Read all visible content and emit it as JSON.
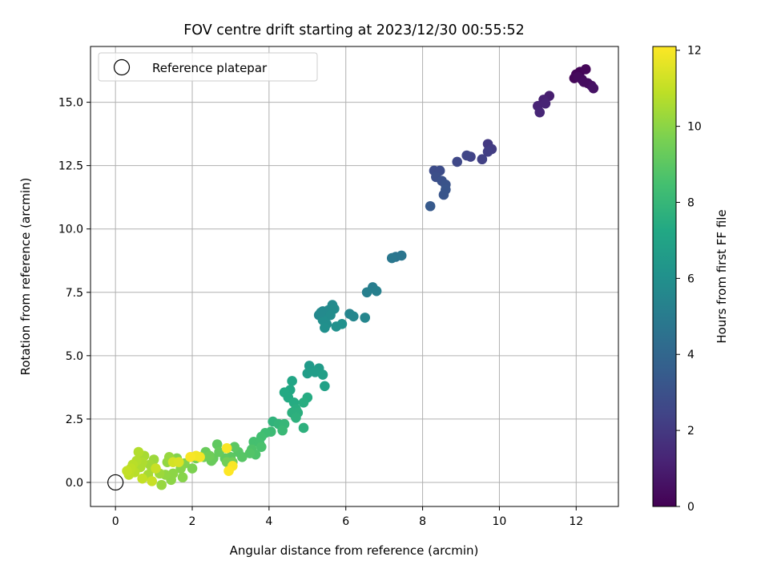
{
  "chart_data": {
    "type": "scatter",
    "title": "FOV centre drift starting at 2023/12/30 00:55:52",
    "xlabel": "Angular distance from reference (arcmin)",
    "ylabel": "Rotation from reference (arcmin)",
    "xlim": [
      -0.65,
      13.1
    ],
    "ylim": [
      -0.95,
      17.2
    ],
    "xticks": [
      0,
      2,
      4,
      6,
      8,
      10,
      12
    ],
    "yticks": [
      0.0,
      2.5,
      5.0,
      7.5,
      10.0,
      12.5,
      15.0
    ],
    "xtick_labels": [
      "0",
      "2",
      "4",
      "6",
      "8",
      "10",
      "12"
    ],
    "ytick_labels": [
      "0.0",
      "2.5",
      "5.0",
      "7.5",
      "10.0",
      "12.5",
      "15.0"
    ],
    "grid": true,
    "colormap": "viridis",
    "colorbar": {
      "label": "Hours from first FF file",
      "range": [
        0,
        12.1
      ],
      "ticks": [
        0,
        2,
        4,
        6,
        8,
        10,
        12
      ],
      "tick_labels": [
        "0",
        "2",
        "4",
        "6",
        "8",
        "10",
        "12"
      ]
    },
    "legend": {
      "position": "top-left",
      "entries": [
        {
          "label": "Reference platepar",
          "marker": "open-circle"
        }
      ]
    },
    "reference_point": {
      "x": 0,
      "y": 0
    },
    "series": [
      {
        "points": [
          [
            12.0,
            16.1,
            0.1
          ],
          [
            12.1,
            16.2,
            0.1
          ],
          [
            12.25,
            16.3,
            0.2
          ],
          [
            11.95,
            15.95,
            0.2
          ],
          [
            12.15,
            15.9,
            0.3
          ],
          [
            12.3,
            15.75,
            0.4
          ],
          [
            12.4,
            15.65,
            0.5
          ],
          [
            12.45,
            15.55,
            0.6
          ],
          [
            12.05,
            16.0,
            0.3
          ],
          [
            12.2,
            15.8,
            0.4
          ],
          [
            11.3,
            15.25,
            1.0
          ],
          [
            11.15,
            15.1,
            1.1
          ],
          [
            11.0,
            14.85,
            1.2
          ],
          [
            11.05,
            14.6,
            1.3
          ],
          [
            11.2,
            14.95,
            1.2
          ],
          [
            9.7,
            13.35,
            2.0
          ],
          [
            9.8,
            13.15,
            2.1
          ],
          [
            9.7,
            13.05,
            2.2
          ],
          [
            9.55,
            12.75,
            2.3
          ],
          [
            9.25,
            12.85,
            2.4
          ],
          [
            9.15,
            12.9,
            2.5
          ],
          [
            8.9,
            12.65,
            2.6
          ],
          [
            8.3,
            12.3,
            2.8
          ],
          [
            8.45,
            12.3,
            2.8
          ],
          [
            8.35,
            12.05,
            2.9
          ],
          [
            8.5,
            11.9,
            3.0
          ],
          [
            8.6,
            11.75,
            3.1
          ],
          [
            8.6,
            11.55,
            3.2
          ],
          [
            8.55,
            11.35,
            3.2
          ],
          [
            8.2,
            10.9,
            3.4
          ],
          [
            7.3,
            8.9,
            4.6
          ],
          [
            7.45,
            8.95,
            4.7
          ],
          [
            7.2,
            8.85,
            4.8
          ],
          [
            6.7,
            7.7,
            5.1
          ],
          [
            6.8,
            7.55,
            5.2
          ],
          [
            6.55,
            7.5,
            5.2
          ],
          [
            6.1,
            6.65,
            5.4
          ],
          [
            6.2,
            6.55,
            5.5
          ],
          [
            6.5,
            6.5,
            5.5
          ],
          [
            5.3,
            6.6,
            5.6
          ],
          [
            5.4,
            6.75,
            5.6
          ],
          [
            5.55,
            6.8,
            5.7
          ],
          [
            5.65,
            7.0,
            5.7
          ],
          [
            5.7,
            6.85,
            5.8
          ],
          [
            5.45,
            6.5,
            5.8
          ],
          [
            5.6,
            6.6,
            5.8
          ],
          [
            5.4,
            6.4,
            5.9
          ],
          [
            5.5,
            6.25,
            5.9
          ],
          [
            5.75,
            6.15,
            6.0
          ],
          [
            5.9,
            6.25,
            6.0
          ],
          [
            5.45,
            6.1,
            6.0
          ],
          [
            5.35,
            6.7,
            5.7
          ],
          [
            5.05,
            4.6,
            6.5
          ],
          [
            5.3,
            4.5,
            6.6
          ],
          [
            5.2,
            4.35,
            6.7
          ],
          [
            5.0,
            4.3,
            6.7
          ],
          [
            5.4,
            4.25,
            6.8
          ],
          [
            5.45,
            3.8,
            6.9
          ],
          [
            4.6,
            4.0,
            7.1
          ],
          [
            4.55,
            3.65,
            7.2
          ],
          [
            4.4,
            3.55,
            7.3
          ],
          [
            4.5,
            3.35,
            7.3
          ],
          [
            4.65,
            3.15,
            7.4
          ],
          [
            5.0,
            3.35,
            7.4
          ],
          [
            4.9,
            3.15,
            7.5
          ],
          [
            4.7,
            2.9,
            7.5
          ],
          [
            4.6,
            2.75,
            7.6
          ],
          [
            4.75,
            2.75,
            7.6
          ],
          [
            4.7,
            2.55,
            7.7
          ],
          [
            4.9,
            2.15,
            7.7
          ],
          [
            4.1,
            2.4,
            7.8
          ],
          [
            4.25,
            2.3,
            7.9
          ],
          [
            4.4,
            2.3,
            8.0
          ],
          [
            4.35,
            2.05,
            8.1
          ],
          [
            4.05,
            2.0,
            8.2
          ],
          [
            3.9,
            1.95,
            8.3
          ],
          [
            3.8,
            1.8,
            8.4
          ],
          [
            3.6,
            1.6,
            8.5
          ],
          [
            3.75,
            1.55,
            8.5
          ],
          [
            3.8,
            1.4,
            8.6
          ],
          [
            3.55,
            1.3,
            8.7
          ],
          [
            3.65,
            1.1,
            8.7
          ],
          [
            3.5,
            1.15,
            8.8
          ],
          [
            3.2,
            1.2,
            8.9
          ],
          [
            3.3,
            1.0,
            8.9
          ],
          [
            3.1,
            1.4,
            9.0
          ],
          [
            3.0,
            1.0,
            9.0
          ],
          [
            2.85,
            0.95,
            9.1
          ],
          [
            2.65,
            1.5,
            9.1
          ],
          [
            2.7,
            1.2,
            9.2
          ],
          [
            2.55,
            0.95,
            9.2
          ],
          [
            2.35,
            1.2,
            9.3
          ],
          [
            2.5,
            0.85,
            9.3
          ],
          [
            2.3,
            1.0,
            9.4
          ],
          [
            2.45,
            1.05,
            9.4
          ],
          [
            3.05,
            0.8,
            9.5
          ],
          [
            2.9,
            0.8,
            9.5
          ],
          [
            2.1,
            0.95,
            9.6
          ],
          [
            2.0,
            0.55,
            9.7
          ],
          [
            1.8,
            0.75,
            9.8
          ],
          [
            1.6,
            0.95,
            9.8
          ],
          [
            1.7,
            0.55,
            9.9
          ],
          [
            1.75,
            0.2,
            9.9
          ],
          [
            1.5,
            0.35,
            10.0
          ],
          [
            1.45,
            0.1,
            10.0
          ],
          [
            1.35,
            0.8,
            10.1
          ],
          [
            1.3,
            0.3,
            10.1
          ],
          [
            1.4,
            1.0,
            10.2
          ],
          [
            1.2,
            -0.1,
            10.2
          ],
          [
            1.15,
            0.35,
            10.3
          ],
          [
            1.0,
            0.9,
            10.3
          ],
          [
            0.95,
            0.55,
            10.4
          ],
          [
            0.9,
            0.7,
            10.4
          ],
          [
            0.85,
            0.3,
            10.5
          ],
          [
            0.75,
            1.05,
            10.5
          ],
          [
            0.7,
            0.8,
            10.6
          ],
          [
            0.65,
            0.6,
            10.6
          ],
          [
            0.6,
            1.2,
            10.7
          ],
          [
            0.55,
            0.85,
            10.7
          ],
          [
            0.5,
            0.4,
            10.8
          ],
          [
            0.45,
            0.7,
            10.8
          ],
          [
            0.4,
            0.55,
            10.9
          ],
          [
            0.35,
            0.3,
            10.9
          ],
          [
            0.3,
            0.45,
            11.0
          ],
          [
            0.7,
            0.15,
            11.0
          ],
          [
            0.95,
            0.05,
            11.1
          ],
          [
            1.05,
            0.55,
            11.1
          ],
          [
            1.5,
            0.8,
            11.3
          ],
          [
            1.65,
            0.8,
            11.4
          ],
          [
            2.1,
            1.05,
            11.9
          ],
          [
            2.2,
            1.0,
            11.9
          ],
          [
            1.95,
            1.0,
            12.0
          ],
          [
            2.9,
            1.35,
            12.0
          ],
          [
            3.05,
            0.65,
            12.0
          ],
          [
            2.95,
            0.45,
            12.1
          ]
        ]
      }
    ]
  }
}
